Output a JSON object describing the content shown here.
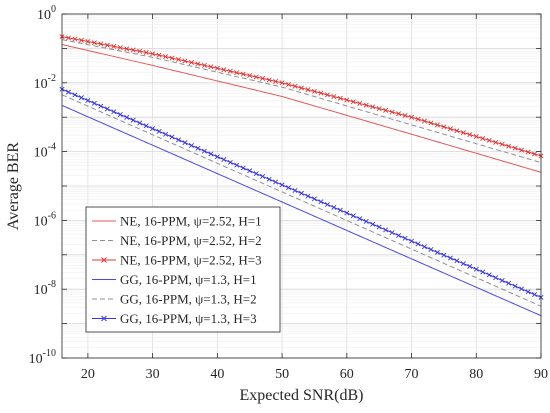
{
  "chart_data": {
    "type": "line",
    "xlabel": "Expected SNR(dB)",
    "ylabel": "Average BER",
    "xlim": [
      16,
      90
    ],
    "ylim_log10": [
      -10,
      0
    ],
    "y_scale": "log",
    "grid": true,
    "legend_placement": "lower-left",
    "x_ticks": [
      20,
      30,
      40,
      50,
      60,
      70,
      80,
      90
    ],
    "x_tick_labels": [
      "20",
      "30",
      "40",
      "50",
      "60",
      "70",
      "80",
      "90"
    ],
    "y_ticks": [
      {
        "exp": 0,
        "base": "10",
        "sup": "0"
      },
      {
        "exp": -2,
        "base": "10",
        "sup": "-2"
      },
      {
        "exp": -4,
        "base": "10",
        "sup": "-4"
      },
      {
        "exp": -6,
        "base": "10",
        "sup": "-6"
      },
      {
        "exp": -8,
        "base": "10",
        "sup": "-8"
      },
      {
        "exp": -10,
        "base": "10",
        "sup": "-10"
      }
    ],
    "series": [
      {
        "name": "NE, 16-PPM, ψ=2.52, H=1",
        "color": "#e05a5a",
        "style": "solid",
        "marker": "none",
        "x": [
          16,
          30,
          50,
          70,
          90
        ],
        "y": [
          0.13,
          0.032,
          0.004,
          0.00032,
          2.5e-05
        ]
      },
      {
        "name": "NE, 16-PPM, ψ=2.52, H=2",
        "color": "#909090",
        "style": "dashed",
        "marker": "none",
        "x": [
          16,
          30,
          50,
          70,
          90
        ],
        "y": [
          0.18,
          0.055,
          0.0075,
          0.0006,
          4.8e-05
        ]
      },
      {
        "name": "NE, 16-PPM, ψ=2.52, H=3",
        "color": "#e03a3a",
        "style": "solid",
        "marker": "x",
        "x": [
          16,
          30,
          50,
          70,
          90
        ],
        "y": [
          0.22,
          0.07,
          0.01,
          0.001,
          7.5e-05
        ]
      },
      {
        "name": "GG, 16-PPM, ψ=1.3, H=1",
        "color": "#4a4ae0",
        "style": "solid",
        "marker": "none",
        "x": [
          16,
          90
        ],
        "y": [
          0.0022,
          1.7e-09
        ]
      },
      {
        "name": "GG, 16-PPM, ψ=1.3, H=2",
        "color": "#909090",
        "style": "dashed",
        "marker": "none",
        "x": [
          16,
          90
        ],
        "y": [
          0.0045,
          3.2e-09
        ]
      },
      {
        "name": "GG, 16-PPM, ψ=1.3, H=3",
        "color": "#3a3ad8",
        "style": "solid",
        "marker": "x",
        "x": [
          16,
          90
        ],
        "y": [
          0.0065,
          5.8e-09
        ]
      }
    ]
  }
}
